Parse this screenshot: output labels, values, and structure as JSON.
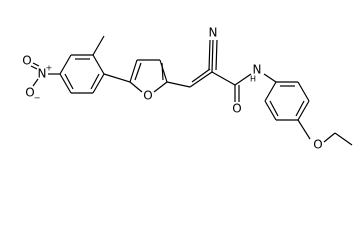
{
  "atom_labels": [
    "N",
    "N",
    "+",
    "O",
    "O",
    "−",
    "O",
    "O",
    "H",
    "N",
    "O"
  ]
}
